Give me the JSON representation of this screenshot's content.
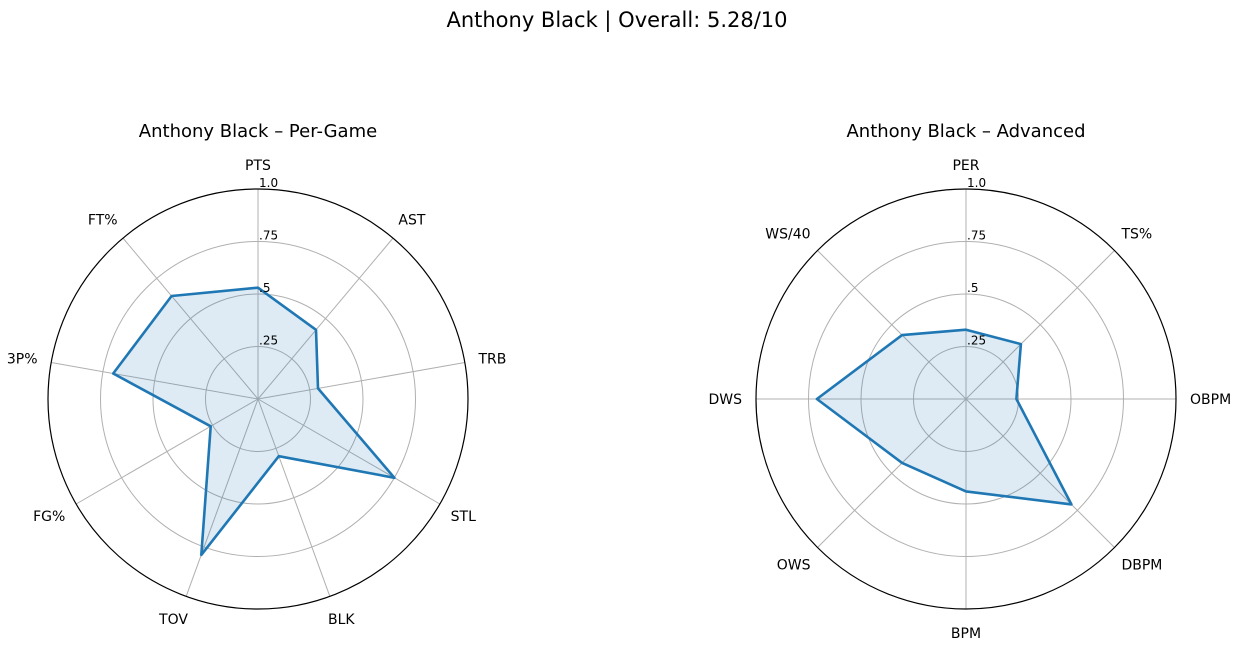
{
  "figure": {
    "title": "Anthony Black | Overall: 5.28/10"
  },
  "style": {
    "line_color": "#1f77b4",
    "fill_color": "#1f77b4",
    "grid_color": "#b0b0b0",
    "frame_color": "#000000"
  },
  "chart_data": [
    {
      "type": "radar",
      "title": "Anthony Black – Per-Game",
      "axes": [
        "PTS",
        "AST",
        "TRB",
        "STL",
        "BLK",
        "TOV",
        "FG%",
        "3P%",
        "FT%"
      ],
      "values": [
        0.53,
        0.43,
        0.29,
        0.75,
        0.29,
        0.79,
        0.26,
        0.7,
        0.64
      ],
      "rlim": [
        0,
        1.0
      ],
      "rticks": [
        0.25,
        0.5,
        0.75,
        1.0
      ],
      "rtick_labels": [
        ".25",
        ".5",
        ".75",
        "1.0"
      ],
      "grid": true
    },
    {
      "type": "radar",
      "title": "Anthony Black – Advanced",
      "axes": [
        "PER",
        "TS%",
        "OBPM",
        "DBPM",
        "BPM",
        "OWS",
        "DWS",
        "WS/40"
      ],
      "values": [
        0.33,
        0.37,
        0.24,
        0.71,
        0.44,
        0.43,
        0.71,
        0.43
      ],
      "rlim": [
        0,
        1.0
      ],
      "rticks": [
        0.25,
        0.5,
        0.75,
        1.0
      ],
      "rtick_labels": [
        ".25",
        ".5",
        ".75",
        "1.0"
      ],
      "grid": true
    }
  ]
}
